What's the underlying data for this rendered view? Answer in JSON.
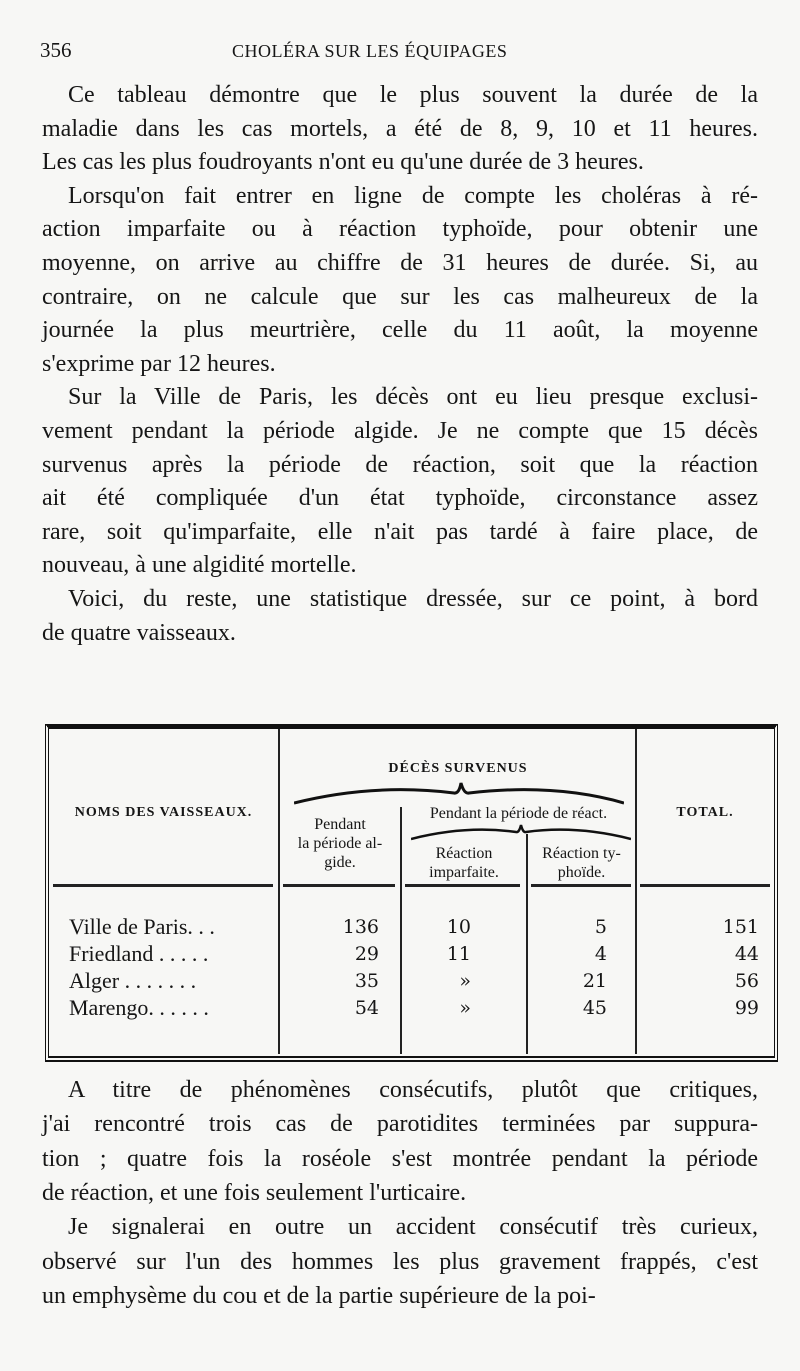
{
  "header": {
    "page_number": "356",
    "running_title": "CHOLÉRA SUR LES ÉQUIPAGES"
  },
  "paragraphs_top": [
    [
      "Ce tableau démontre que le plus souvent la durée de la",
      "maladie dans les cas mortels, a été de 8, 9, 10 et 11 heures.",
      "Les cas les plus foudroyants n'ont eu qu'une durée de 3 heures."
    ],
    [
      "Lorsqu'on fait entrer en ligne de compte les choléras à ré-",
      "action imparfaite ou à réaction typhoïde, pour obtenir une",
      "moyenne, on arrive au chiffre de 31 heures de durée. Si, au",
      "contraire, on ne calcule que sur les cas malheureux de la",
      "journée la plus meurtrière, celle du 11 août, la moyenne",
      "s'exprime par 12 heures."
    ],
    [
      "Sur la Ville de Paris, les décès ont eu lieu presque exclusi-",
      "vement pendant la période algide. Je ne compte que 15 décès",
      "survenus après la période de réaction, soit que la réaction",
      "ait été compliquée d'un état typhoïde, circonstance assez",
      "rare, soit qu'imparfaite, elle n'ait pas tardé à faire place, de",
      "nouveau, à une algidité mortelle."
    ],
    [
      "Voici, du reste, une statistique dressée, sur ce point, à bord",
      "de quatre vaisseaux."
    ]
  ],
  "table": {
    "group_header": "DÉCÈS SURVENUS",
    "col_name": "NOMS DES VAISSEAUX.",
    "col_algide": [
      "Pendant",
      "la période al-",
      "gide."
    ],
    "col_reaction_group": "Pendant la période de réact.",
    "col_imparfaite": [
      "Réaction",
      "imparfaite."
    ],
    "col_typhoide": [
      "Réaction ty-",
      "phoïde."
    ],
    "col_total": "TOTAL.",
    "rows": [
      {
        "name": "Ville de Paris. . .",
        "algide": "136",
        "imparfaite": "10",
        "typhoide": "5",
        "total": "151"
      },
      {
        "name": "Friedland . . . . .",
        "algide": "29",
        "imparfaite": "11",
        "typhoide": "4",
        "total": "44"
      },
      {
        "name": "Alger . . . . . . .",
        "algide": "35",
        "imparfaite": "»",
        "typhoide": "21",
        "total": "56"
      },
      {
        "name": "Marengo. . . . . .",
        "algide": "54",
        "imparfaite": "»",
        "typhoide": "45",
        "total": "99"
      }
    ]
  },
  "paragraphs_bottom": [
    [
      "A titre de phénomènes consécutifs, plutôt que critiques,",
      "j'ai rencontré trois cas de parotidites terminées par suppura-",
      "tion ; quatre fois la roséole s'est montrée pendant la période",
      "de réaction, et une fois seulement l'urticaire."
    ],
    [
      "Je signalerai en outre un accident consécutif très curieux,",
      "observé sur l'un des hommes les plus gravement frappés, c'est",
      "un emphysème du cou et de la partie supérieure de la poi-"
    ]
  ]
}
